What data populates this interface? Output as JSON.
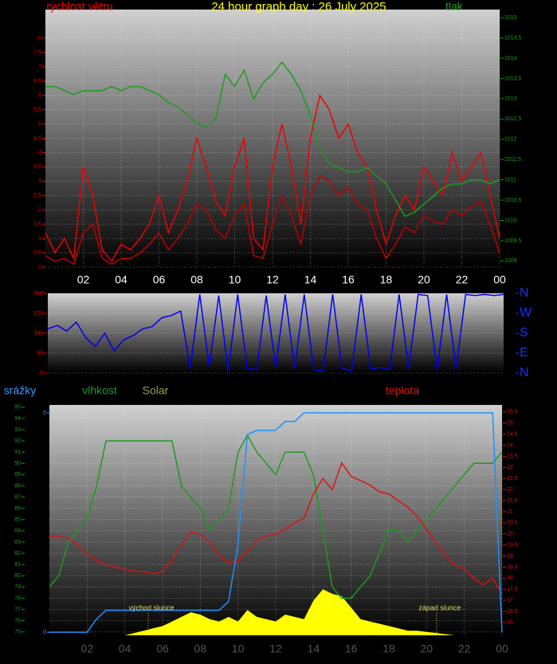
{
  "chart_data": [
    {
      "type": "line",
      "title": "24 hour graph day : 26 July 2025",
      "y_label": "rychlost větru",
      "y2_label": "tlak",
      "x": [
        0,
        0.5,
        1,
        1.5,
        2,
        2.5,
        3,
        3.5,
        4,
        4.5,
        5,
        5.5,
        6,
        6.5,
        7,
        7.5,
        8,
        8.5,
        9,
        9.5,
        10,
        10.5,
        11,
        11.5,
        12,
        12.5,
        13,
        13.5,
        14,
        14.5,
        15,
        15.5,
        16,
        16.5,
        17,
        17.5,
        18,
        18.5,
        19,
        19.5,
        20,
        20.5,
        21,
        21.5,
        22,
        22.5,
        23,
        23.5,
        24
      ],
      "xlim": [
        0,
        24
      ],
      "xticks": [
        {
          "value": 2,
          "label": "02"
        },
        {
          "value": 4,
          "label": "04"
        },
        {
          "value": 6,
          "label": "06"
        },
        {
          "value": 8,
          "label": "08"
        },
        10,
        12,
        14,
        16,
        18,
        20,
        22,
        {
          "value": 24,
          "label": "00"
        }
      ],
      "ylim": [
        0,
        9
      ],
      "yticks": [
        0,
        {
          "value": 0.5,
          "label": "0,5"
        },
        1,
        {
          "value": 1.5,
          "label": "1,5"
        },
        2,
        {
          "value": 2.5,
          "label": "2,5"
        },
        3,
        {
          "value": 3.5,
          "label": "3,5"
        },
        4,
        {
          "value": 4.5,
          "label": "4,5"
        },
        5,
        {
          "value": 5.5,
          "label": "5,5"
        },
        6,
        {
          "value": 6.5,
          "label": "6,5"
        },
        7,
        {
          "value": 7.5,
          "label": "7,5"
        },
        8
      ],
      "y2lim": [
        1008.85,
        1015.2
      ],
      "y2ticks": [
        1009,
        {
          "value": 1009.5,
          "label": "1009,5"
        },
        1010,
        {
          "value": 1010.5,
          "label": "1010,5"
        },
        1011,
        {
          "value": 1011.5,
          "label": "1011,5"
        },
        1012,
        {
          "value": 1012.5,
          "label": "1012,5"
        },
        1013,
        {
          "value": 1013.5,
          "label": "1013,5"
        },
        1014,
        {
          "value": 1014.5,
          "label": "1014,5"
        },
        1015
      ],
      "grid": true,
      "series": [
        {
          "color": "#ee0000",
          "values": [
            1.2,
            0.5,
            1,
            0.3,
            3.5,
            2.5,
            0.6,
            0.2,
            0.8,
            0.6,
            1,
            1.5,
            2.5,
            1.2,
            2,
            3,
            4.5,
            3.5,
            2.3,
            1.8,
            3.5,
            4.5,
            1,
            0.6,
            3.5,
            5,
            3.5,
            1.5,
            4.5,
            6,
            5.5,
            4.5,
            5,
            4,
            3.5,
            2,
            0.8,
            1.8,
            2.5,
            2,
            3.5,
            3,
            2.5,
            4,
            3,
            3.5,
            4,
            2.5,
            1
          ]
        },
        {
          "color": "#c00000",
          "values": [
            0.4,
            0.2,
            0.3,
            0.1,
            1.2,
            1.5,
            0.3,
            0.1,
            0.3,
            0.3,
            0.5,
            0.8,
            1.2,
            0.6,
            1,
            1.5,
            2.2,
            2,
            1.3,
            1,
            1.8,
            2.2,
            0.4,
            0.3,
            1.5,
            2.5,
            1.8,
            0.8,
            2.5,
            3.2,
            3,
            2.5,
            2.8,
            2.2,
            2,
            1,
            0.3,
            0.8,
            1.4,
            1.2,
            1.8,
            1.6,
            1.5,
            2,
            1.8,
            2.1,
            2.3,
            1.5,
            0.5
          ]
        },
        {
          "color": "#1f9a1f",
          "axis": "y2",
          "values": [
            1013.3,
            1013.3,
            1013.2,
            1013.1,
            1013.2,
            1013.2,
            1013.2,
            1013.3,
            1013.2,
            1013.3,
            1013.3,
            1013.2,
            1013.1,
            1012.9,
            1012.8,
            1012.6,
            1012.4,
            1012.3,
            1012.5,
            1013.6,
            1013.3,
            1013.7,
            1013.0,
            1013.4,
            1013.6,
            1013.9,
            1013.6,
            1013.2,
            1012.6,
            1011.8,
            1011.4,
            1011.3,
            1011.2,
            1011.2,
            1011.3,
            1011.1,
            1010.9,
            1010.5,
            1010.1,
            1010.2,
            1010.4,
            1010.6,
            1010.8,
            1010.9,
            1010.9,
            1011.0,
            1011.0,
            1010.9,
            1011.0
          ]
        }
      ]
    },
    {
      "type": "line",
      "x": [
        0,
        0.5,
        1,
        1.5,
        2,
        2.5,
        3,
        3.5,
        4,
        4.5,
        5,
        5.5,
        6,
        6.5,
        7,
        7.5,
        8,
        8.5,
        9,
        9.5,
        10,
        10.5,
        11,
        11.5,
        12,
        12.5,
        13,
        13.5,
        14,
        14.5,
        15,
        15.5,
        16,
        16.5,
        17,
        17.5,
        18,
        18.5,
        19,
        19.5,
        20,
        20.5,
        21,
        21.5,
        22,
        22.5,
        23,
        23.5,
        24
      ],
      "xlim": [
        0,
        24
      ],
      "ylim": [
        0,
        360
      ],
      "yticks": [
        0,
        90,
        180,
        270,
        360
      ],
      "y2ticks": [
        {
          "value": 360,
          "label": "N"
        },
        {
          "value": 270,
          "label": "W"
        },
        {
          "value": 180,
          "label": "S"
        },
        {
          "value": 90,
          "label": "E"
        },
        {
          "value": 0,
          "label": "N"
        }
      ],
      "grid": true,
      "series": [
        {
          "color": "#0000ee",
          "values": [
            200,
            215,
            190,
            230,
            160,
            120,
            180,
            100,
            150,
            170,
            200,
            210,
            250,
            260,
            280,
            20,
            355,
            30,
            350,
            10,
            355,
            20,
            15,
            350,
            25,
            355,
            20,
            355,
            15,
            10,
            355,
            20,
            10,
            355,
            20,
            25,
            15,
            355,
            20,
            355,
            350,
            15,
            355,
            20,
            355,
            350,
            355,
            350,
            355
          ]
        }
      ]
    },
    {
      "type": "line",
      "x": [
        0,
        0.5,
        1,
        1.5,
        2,
        2.5,
        3,
        3.5,
        4,
        4.5,
        5,
        5.5,
        6,
        6.5,
        7,
        7.5,
        8,
        8.5,
        9,
        9.5,
        10,
        10.5,
        11,
        11.5,
        12,
        12.5,
        13,
        13.5,
        14,
        14.5,
        15,
        15.5,
        16,
        16.5,
        17,
        17.5,
        18,
        18.5,
        19,
        19.5,
        20,
        20.5,
        21,
        21.5,
        22,
        22.5,
        23,
        23.5,
        24
      ],
      "xlim": [
        0,
        24
      ],
      "xticks": [
        {
          "value": 2,
          "label": "02"
        },
        {
          "value": 4,
          "label": "04"
        },
        {
          "value": 6,
          "label": "06"
        },
        {
          "value": 8,
          "label": "08"
        },
        10,
        12,
        14,
        16,
        18,
        20,
        22,
        {
          "value": 24,
          "label": "00"
        }
      ],
      "ylim": [
        74.7,
        95.2
      ],
      "yticks": [
        75,
        76,
        77,
        78,
        79,
        80,
        81,
        82,
        83,
        84,
        85,
        86,
        87,
        88,
        89,
        90,
        91,
        92,
        93,
        94,
        95
      ],
      "y2lim": [
        15.42,
        25.82
      ],
      "y2ticks": [
        16,
        {
          "value": 16.5,
          "label": "16,5"
        },
        17,
        {
          "value": 17.5,
          "label": "17,5"
        },
        18,
        {
          "value": 18.5,
          "label": "18,5"
        },
        19,
        {
          "value": 19.5,
          "label": "19,5"
        },
        20,
        {
          "value": 20.5,
          "label": "20,5"
        },
        21,
        {
          "value": 21.5,
          "label": "21,5"
        },
        22,
        {
          "value": 22.5,
          "label": "22,5"
        },
        23,
        {
          "value": 23.5,
          "label": "23,5"
        },
        24,
        {
          "value": 24.5,
          "label": "24,5"
        },
        25,
        {
          "value": 25.5,
          "label": "25,5"
        }
      ],
      "y3lim": [
        -0.07,
        5.18
      ],
      "y3ticks": [
        0,
        5
      ],
      "y4lim": [
        0,
        1000
      ],
      "grid": true,
      "annotations": [
        {
          "text": "východ slunce",
          "x": 5.24
        },
        {
          "text": "západ slunce",
          "x": 20.53
        }
      ],
      "series": [
        {
          "name": "Solar",
          "color": "#ffff00",
          "axis": "y4",
          "fill": true,
          "values": [
            0,
            0,
            0,
            0,
            0,
            0,
            0,
            0,
            0,
            10,
            20,
            30,
            40,
            60,
            80,
            100,
            90,
            70,
            60,
            80,
            60,
            110,
            80,
            70,
            60,
            90,
            80,
            70,
            150,
            200,
            180,
            170,
            120,
            70,
            60,
            50,
            40,
            30,
            20,
            20,
            15,
            10,
            5,
            0,
            0,
            0,
            0,
            0,
            0
          ]
        },
        {
          "name": "vlhkost",
          "color": "#1f9a1f",
          "values": [
            79,
            80,
            83,
            84,
            85,
            88,
            92,
            92,
            92,
            92,
            92,
            92,
            92,
            92,
            88,
            87,
            86,
            84,
            85,
            86,
            91,
            92.5,
            91,
            90,
            89,
            91,
            91,
            91,
            89,
            84,
            79,
            78,
            78,
            79,
            80,
            82,
            84,
            84,
            83,
            84,
            85,
            86,
            87,
            88,
            89,
            90,
            90,
            90,
            91
          ]
        },
        {
          "name": "teplota",
          "color": "#dd1111",
          "axis": "y2",
          "values": [
            19.9,
            19.9,
            19.8,
            19.5,
            19.1,
            18.8,
            18.6,
            18.5,
            18.4,
            18.3,
            18.3,
            18.2,
            18.3,
            18.8,
            19.5,
            20.1,
            20.0,
            19.6,
            19.0,
            18.7,
            18.8,
            19.2,
            19.7,
            19.9,
            20.0,
            20.2,
            20.5,
            20.7,
            21.8,
            22.5,
            22.0,
            23.2,
            22.6,
            22.4,
            22.2,
            21.9,
            21.8,
            21.5,
            21.2,
            20.8,
            20.2,
            19.6,
            19.0,
            18.6,
            18.4,
            18.0,
            17.7,
            18.0,
            17.3
          ]
        },
        {
          "name": "srážky",
          "color": "#1e90ff",
          "axis": "y3",
          "values": [
            0,
            0,
            0,
            0,
            0,
            0.3,
            0.5,
            0.5,
            0.5,
            0.5,
            0.5,
            0.5,
            0.5,
            0.5,
            0.5,
            0.5,
            0.5,
            0.5,
            0.5,
            0.7,
            2.0,
            4.5,
            4.6,
            4.6,
            4.6,
            4.8,
            4.8,
            5,
            5,
            5,
            5,
            5,
            5,
            5,
            5,
            5,
            5,
            5,
            5,
            5,
            5,
            5,
            5,
            5,
            5,
            5,
            5,
            5,
            0
          ]
        }
      ]
    }
  ]
}
